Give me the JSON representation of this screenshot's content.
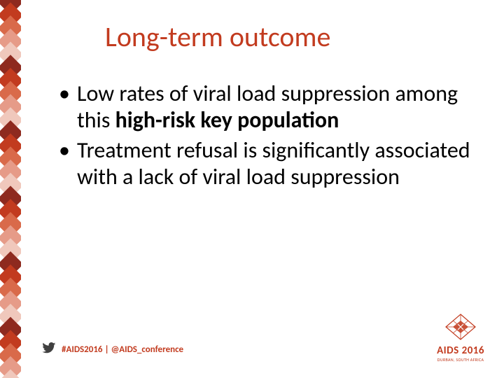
{
  "title": {
    "text": "Long-term outcome",
    "color": "#c23b1f",
    "fontsize": 40
  },
  "bullets": [
    {
      "pre": "Low rates of viral load suppression among this ",
      "bold": "high-risk key population",
      "post": ""
    },
    {
      "pre": "Treatment refusal is significantly associated with a lack of viral load suppression",
      "bold": "",
      "post": ""
    }
  ],
  "footer": {
    "hashtag": "#AIDS2016 | @AIDS_conference",
    "color": "#c23b1f",
    "twitter_icon_color": "#404040"
  },
  "logo": {
    "main": "AIDS 2016",
    "sub": "DURBAN, SOUTH AFRICA",
    "color": "#c23b1f",
    "fontsize": 15
  },
  "stripe": {
    "colors": [
      "#8e2a1f",
      "#c23b1f",
      "#d96a4a",
      "#e69b88",
      "#f0c8bc"
    ]
  }
}
